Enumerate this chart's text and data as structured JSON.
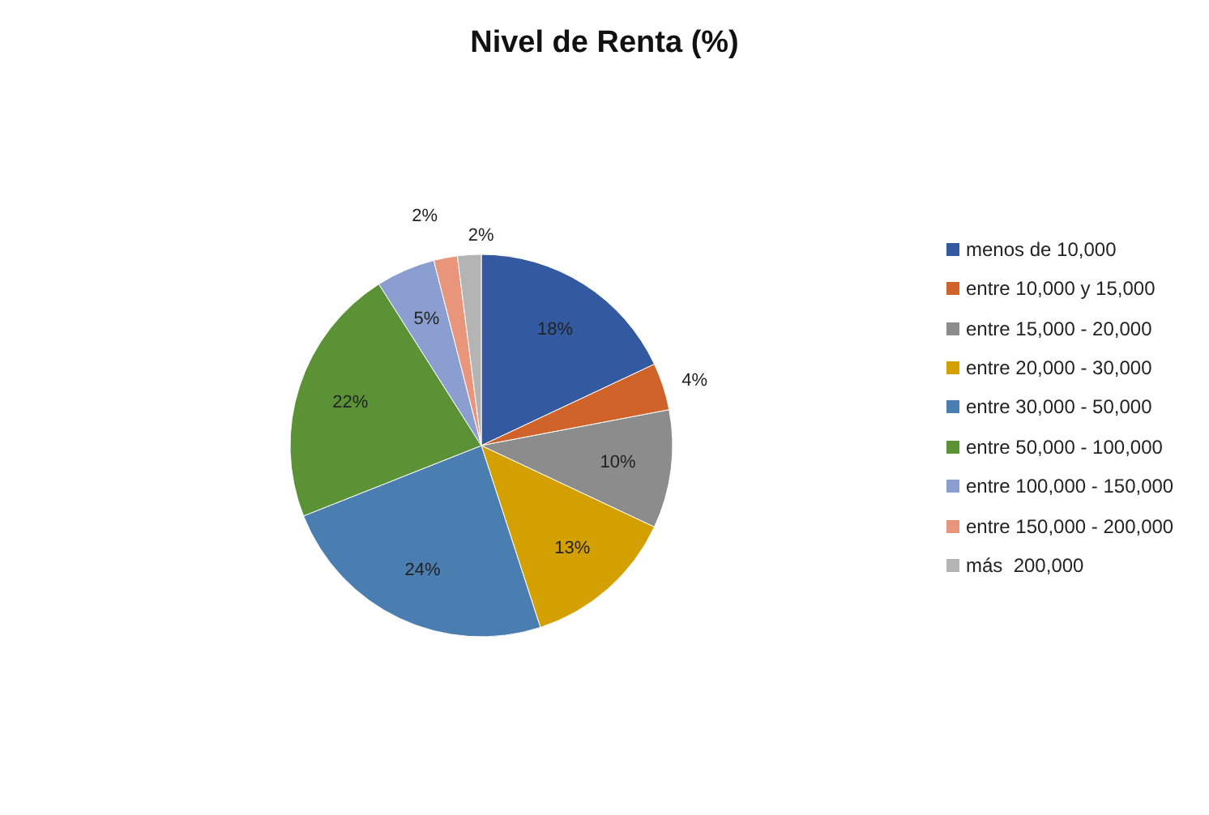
{
  "chart_data": {
    "type": "pie",
    "title": "Nivel de Renta (%)",
    "categories": [
      "menos de 10,000",
      "entre 10,000 y 15,000",
      "entre 15,000 - 20,000",
      "entre 20,000 - 30,000",
      "entre 30,000 - 50,000",
      "entre 50,000 - 100,000",
      "entre 100,000 - 150,000",
      "entre 150,000 - 200,000",
      "más  200,000"
    ],
    "values": [
      18,
      4,
      10,
      13,
      24,
      22,
      5,
      2,
      2
    ],
    "value_labels": [
      "18%",
      "4%",
      "10%",
      "13%",
      "24%",
      "22%",
      "5%",
      "2%",
      "2%"
    ],
    "colors": [
      "#335aa0",
      "#d0632a",
      "#8c8c8c",
      "#d4a000",
      "#4a7db0",
      "#5b9236",
      "#8a9fd0",
      "#e8957b",
      "#b4b4b4"
    ],
    "legend": "right"
  }
}
